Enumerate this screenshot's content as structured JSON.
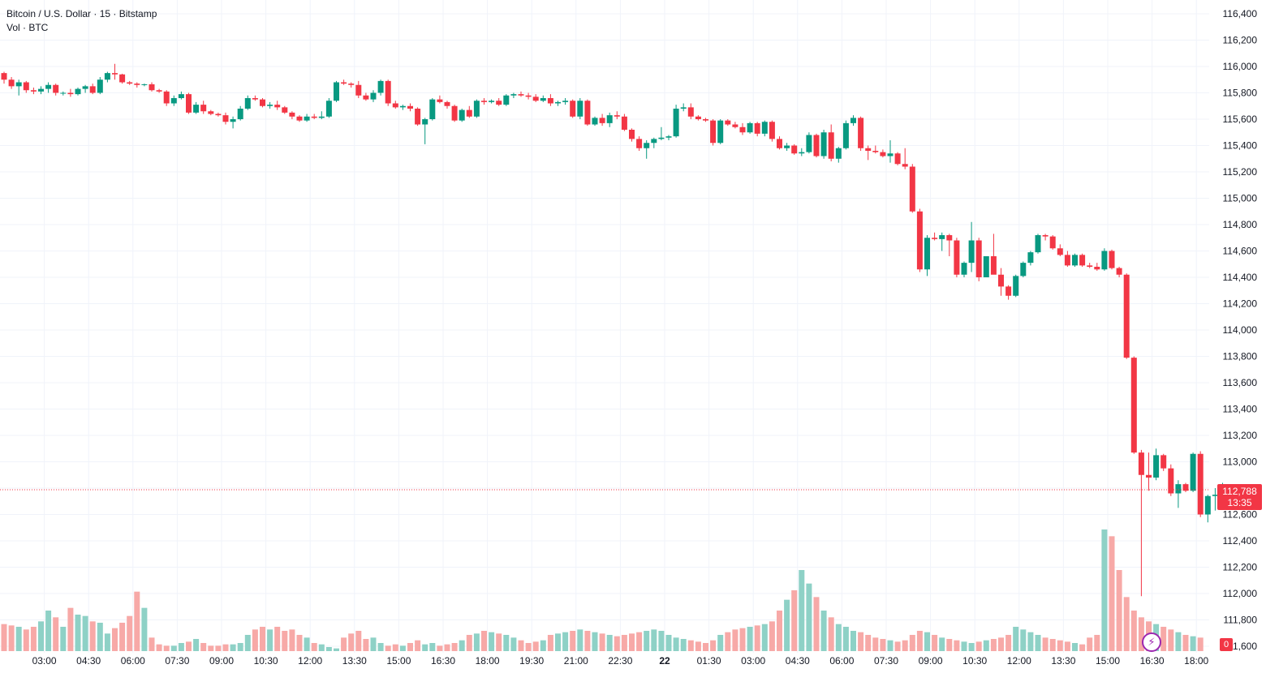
{
  "legend": {
    "symbol_line": "Bitcoin / U.S. Dollar · 15 · Bitstamp",
    "volume_line": "Vol · BTC"
  },
  "last_price": {
    "value": "112,788",
    "countdown": "13:35"
  },
  "volume_badge": "0",
  "colors": {
    "up": "#089981",
    "down": "#f23645",
    "vol_up": "#8ed1c6",
    "vol_down": "#f7a9a7",
    "grid": "#f0f3fa"
  },
  "icons": {
    "assistant": "lightning-bolt-icon"
  },
  "chart_data": {
    "type": "candlestick",
    "title": "Bitcoin / U.S. Dollar · 15 · Bitstamp",
    "y_range": [
      111600,
      116500
    ],
    "y_ticks": [
      116400,
      116200,
      116000,
      115800,
      115600,
      115400,
      115200,
      115000,
      114800,
      114600,
      114400,
      114200,
      114000,
      113800,
      113600,
      113400,
      113200,
      113000,
      112800,
      112600,
      112400,
      112200,
      112000,
      111800,
      111600
    ],
    "x_ticks": [
      {
        "label": "03:00",
        "bold": false
      },
      {
        "label": "04:30",
        "bold": false
      },
      {
        "label": "06:00",
        "bold": false
      },
      {
        "label": "07:30",
        "bold": false
      },
      {
        "label": "09:00",
        "bold": false
      },
      {
        "label": "10:30",
        "bold": false
      },
      {
        "label": "12:00",
        "bold": false
      },
      {
        "label": "13:30",
        "bold": false
      },
      {
        "label": "15:00",
        "bold": false
      },
      {
        "label": "16:30",
        "bold": false
      },
      {
        "label": "18:00",
        "bold": false
      },
      {
        "label": "19:30",
        "bold": false
      },
      {
        "label": "21:00",
        "bold": false
      },
      {
        "label": "22:30",
        "bold": false
      },
      {
        "label": "22",
        "bold": true
      },
      {
        "label": "01:30",
        "bold": false
      },
      {
        "label": "03:00",
        "bold": false
      },
      {
        "label": "04:30",
        "bold": false
      },
      {
        "label": "06:00",
        "bold": false
      },
      {
        "label": "07:30",
        "bold": false
      },
      {
        "label": "09:00",
        "bold": false
      },
      {
        "label": "10:30",
        "bold": false
      },
      {
        "label": "12:00",
        "bold": false
      },
      {
        "label": "13:30",
        "bold": false
      },
      {
        "label": "15:00",
        "bold": false
      },
      {
        "label": "16:30",
        "bold": false
      },
      {
        "label": "18:00",
        "bold": false
      }
    ],
    "candles_per_tick": 6,
    "first_tick_index": 6,
    "last_price": 112788,
    "candles": [
      [
        115950,
        115960,
        115870,
        115900
      ],
      [
        115900,
        115920,
        115830,
        115850
      ],
      [
        115850,
        115900,
        115780,
        115880
      ],
      [
        115880,
        115890,
        115800,
        115820
      ],
      [
        115820,
        115840,
        115790,
        115810
      ],
      [
        115810,
        115850,
        115790,
        115830
      ],
      [
        115830,
        115880,
        115800,
        115860
      ],
      [
        115860,
        115870,
        115780,
        115800
      ],
      [
        115800,
        115810,
        115780,
        115800
      ],
      [
        115800,
        115830,
        115770,
        115790
      ],
      [
        115790,
        115840,
        115780,
        115830
      ],
      [
        115830,
        115860,
        115800,
        115850
      ],
      [
        115850,
        115870,
        115790,
        115800
      ],
      [
        115800,
        115920,
        115790,
        115900
      ],
      [
        115900,
        115960,
        115880,
        115950
      ],
      [
        115950,
        116020,
        115900,
        115940
      ],
      [
        115940,
        115945,
        115870,
        115880
      ],
      [
        115880,
        115890,
        115860,
        115870
      ],
      [
        115870,
        115880,
        115840,
        115860
      ],
      [
        115860,
        115870,
        115850,
        115865
      ],
      [
        115865,
        115880,
        115810,
        115820
      ],
      [
        115820,
        115830,
        115800,
        115810
      ],
      [
        115810,
        115820,
        115700,
        115720
      ],
      [
        115720,
        115780,
        115700,
        115760
      ],
      [
        115760,
        115810,
        115750,
        115790
      ],
      [
        115790,
        115800,
        115640,
        115650
      ],
      [
        115650,
        115730,
        115640,
        115710
      ],
      [
        115710,
        115740,
        115640,
        115660
      ],
      [
        115660,
        115670,
        115630,
        115640
      ],
      [
        115640,
        115650,
        115620,
        115630
      ],
      [
        115630,
        115650,
        115560,
        115580
      ],
      [
        115580,
        115620,
        115530,
        115600
      ],
      [
        115600,
        115700,
        115590,
        115680
      ],
      [
        115680,
        115780,
        115670,
        115760
      ],
      [
        115760,
        115780,
        115740,
        115750
      ],
      [
        115750,
        115760,
        115690,
        115700
      ],
      [
        115700,
        115730,
        115680,
        115710
      ],
      [
        115710,
        115740,
        115670,
        115690
      ],
      [
        115690,
        115700,
        115640,
        115650
      ],
      [
        115650,
        115660,
        115600,
        115620
      ],
      [
        115620,
        115630,
        115580,
        115590
      ],
      [
        115590,
        115640,
        115580,
        115620
      ],
      [
        115620,
        115640,
        115600,
        115610
      ],
      [
        115610,
        115660,
        115600,
        115620
      ],
      [
        115620,
        115760,
        115610,
        115740
      ],
      [
        115740,
        115890,
        115730,
        115880
      ],
      [
        115880,
        115900,
        115860,
        115870
      ],
      [
        115870,
        115880,
        115840,
        115860
      ],
      [
        115860,
        115890,
        115760,
        115780
      ],
      [
        115780,
        115800,
        115740,
        115750
      ],
      [
        115750,
        115820,
        115730,
        115800
      ],
      [
        115800,
        115900,
        115780,
        115890
      ],
      [
        115890,
        115900,
        115700,
        115720
      ],
      [
        115720,
        115740,
        115680,
        115690
      ],
      [
        115690,
        115710,
        115670,
        115700
      ],
      [
        115700,
        115720,
        115660,
        115680
      ],
      [
        115680,
        115690,
        115550,
        115560
      ],
      [
        115560,
        115610,
        115410,
        115600
      ],
      [
        115600,
        115760,
        115590,
        115750
      ],
      [
        115750,
        115780,
        115720,
        115730
      ],
      [
        115730,
        115740,
        115680,
        115700
      ],
      [
        115700,
        115710,
        115580,
        115590
      ],
      [
        115590,
        115680,
        115580,
        115670
      ],
      [
        115670,
        115700,
        115610,
        115620
      ],
      [
        115620,
        115750,
        115610,
        115740
      ],
      [
        115740,
        115760,
        115710,
        115730
      ],
      [
        115730,
        115750,
        115720,
        115740
      ],
      [
        115740,
        115760,
        115700,
        115710
      ],
      [
        115710,
        115790,
        115700,
        115780
      ],
      [
        115780,
        115800,
        115760,
        115790
      ],
      [
        115790,
        115810,
        115770,
        115780
      ],
      [
        115780,
        115800,
        115750,
        115770
      ],
      [
        115770,
        115790,
        115730,
        115740
      ],
      [
        115740,
        115780,
        115730,
        115760
      ],
      [
        115760,
        115790,
        115700,
        115720
      ],
      [
        115720,
        115740,
        115700,
        115730
      ],
      [
        115730,
        115760,
        115710,
        115740
      ],
      [
        115740,
        115750,
        115610,
        115620
      ],
      [
        115620,
        115760,
        115600,
        115740
      ],
      [
        115740,
        115750,
        115550,
        115560
      ],
      [
        115560,
        115620,
        115550,
        115610
      ],
      [
        115610,
        115640,
        115550,
        115570
      ],
      [
        115570,
        115650,
        115540,
        115630
      ],
      [
        115630,
        115660,
        115600,
        115620
      ],
      [
        115620,
        115640,
        115510,
        115520
      ],
      [
        115520,
        115530,
        115430,
        115450
      ],
      [
        115450,
        115470,
        115360,
        115380
      ],
      [
        115380,
        115440,
        115300,
        115420
      ],
      [
        115420,
        115460,
        115380,
        115450
      ],
      [
        115450,
        115540,
        115440,
        115460
      ],
      [
        115460,
        115480,
        115440,
        115470
      ],
      [
        115470,
        115710,
        115460,
        115680
      ],
      [
        115680,
        115720,
        115660,
        115690
      ],
      [
        115690,
        115720,
        115600,
        115620
      ],
      [
        115620,
        115630,
        115590,
        115600
      ],
      [
        115600,
        115610,
        115580,
        115590
      ],
      [
        115590,
        115600,
        115400,
        115420
      ],
      [
        115420,
        115600,
        115410,
        115590
      ],
      [
        115590,
        115600,
        115550,
        115560
      ],
      [
        115560,
        115580,
        115530,
        115540
      ],
      [
        115540,
        115570,
        115480,
        115500
      ],
      [
        115500,
        115580,
        115490,
        115570
      ],
      [
        115570,
        115580,
        115470,
        115490
      ],
      [
        115490,
        115590,
        115470,
        115580
      ],
      [
        115580,
        115590,
        115430,
        115450
      ],
      [
        115450,
        115470,
        115370,
        115380
      ],
      [
        115380,
        115420,
        115360,
        115400
      ],
      [
        115400,
        115410,
        115330,
        115340
      ],
      [
        115340,
        115380,
        115320,
        115350
      ],
      [
        115350,
        115500,
        115340,
        115480
      ],
      [
        115480,
        115490,
        115310,
        115320
      ],
      [
        115320,
        115520,
        115300,
        115500
      ],
      [
        115500,
        115560,
        115280,
        115300
      ],
      [
        115300,
        115390,
        115270,
        115380
      ],
      [
        115380,
        115590,
        115370,
        115570
      ],
      [
        115570,
        115630,
        115550,
        115610
      ],
      [
        115610,
        115620,
        115360,
        115380
      ],
      [
        115380,
        115400,
        115290,
        115360
      ],
      [
        115360,
        115400,
        115340,
        115350
      ],
      [
        115350,
        115370,
        115310,
        115320
      ],
      [
        115320,
        115440,
        115270,
        115340
      ],
      [
        115340,
        115350,
        115250,
        115260
      ],
      [
        115260,
        115380,
        115220,
        115240
      ],
      [
        115240,
        115260,
        114890,
        114900
      ],
      [
        114900,
        114920,
        114440,
        114460
      ],
      [
        114460,
        114720,
        114410,
        114700
      ],
      [
        114700,
        114740,
        114680,
        114690
      ],
      [
        114690,
        114740,
        114600,
        114720
      ],
      [
        114720,
        114730,
        114560,
        114680
      ],
      [
        114680,
        114700,
        114400,
        114420
      ],
      [
        114420,
        114520,
        114400,
        114510
      ],
      [
        114510,
        114820,
        114440,
        114680
      ],
      [
        114680,
        114700,
        114370,
        114400
      ],
      [
        114400,
        114560,
        114410,
        114560
      ],
      [
        114560,
        114730,
        114450,
        114420
      ],
      [
        114420,
        114470,
        114260,
        114330
      ],
      [
        114330,
        114340,
        114230,
        114260
      ],
      [
        114260,
        114420,
        114250,
        114410
      ],
      [
        114410,
        114520,
        114400,
        114510
      ],
      [
        114510,
        114600,
        114490,
        114590
      ],
      [
        114590,
        114730,
        114580,
        114720
      ],
      [
        114720,
        114730,
        114680,
        114710
      ],
      [
        114710,
        114720,
        114610,
        114620
      ],
      [
        114620,
        114650,
        114560,
        114570
      ],
      [
        114570,
        114600,
        114480,
        114490
      ],
      [
        114490,
        114580,
        114480,
        114570
      ],
      [
        114570,
        114580,
        114480,
        114490
      ],
      [
        114490,
        114510,
        114470,
        114480
      ],
      [
        114480,
        114510,
        114450,
        114460
      ],
      [
        114460,
        114620,
        114450,
        114600
      ],
      [
        114600,
        114610,
        114460,
        114470
      ],
      [
        114470,
        114480,
        114400,
        114420
      ],
      [
        114420,
        114430,
        113780,
        113790
      ],
      [
        113790,
        113800,
        113060,
        113070
      ],
      [
        113070,
        113090,
        111980,
        112900
      ],
      [
        112900,
        113070,
        112780,
        112880
      ],
      [
        112880,
        113100,
        112860,
        113050
      ],
      [
        113050,
        113060,
        112930,
        112950
      ],
      [
        112950,
        112980,
        112740,
        112760
      ],
      [
        112760,
        112860,
        112650,
        112830
      ],
      [
        112830,
        112840,
        112770,
        112780
      ],
      [
        112780,
        113070,
        112770,
        113060
      ],
      [
        113060,
        113080,
        112580,
        112600
      ],
      [
        112600,
        112750,
        112540,
        112740
      ],
      [
        112740,
        112800,
        112630,
        112750
      ],
      [
        112750,
        112840,
        112690,
        112780
      ],
      [
        112780,
        112800,
        112770,
        112788
      ]
    ],
    "volume": [
      20,
      19,
      18,
      16,
      18,
      22,
      30,
      25,
      18,
      32,
      27,
      26,
      22,
      21,
      13,
      17,
      21,
      26,
      44,
      32,
      10,
      5,
      4,
      4,
      6,
      7,
      9,
      6,
      4,
      4,
      5,
      5,
      6,
      12,
      16,
      18,
      16,
      18,
      15,
      16,
      12,
      10,
      6,
      5,
      3,
      2,
      10,
      13,
      15,
      9,
      10,
      6,
      4,
      5,
      4,
      6,
      8,
      5,
      6,
      4,
      5,
      6,
      8,
      12,
      13,
      15,
      14,
      13,
      12,
      10,
      8,
      6,
      7,
      8,
      12,
      13,
      14,
      15,
      16,
      15,
      14,
      13,
      12,
      11,
      12,
      13,
      14,
      15,
      16,
      15,
      12,
      10,
      9,
      8,
      7,
      6,
      8,
      12,
      14,
      16,
      17,
      18,
      19,
      20,
      22,
      30,
      38,
      45,
      60,
      50,
      40,
      30,
      25,
      20,
      18,
      15,
      14,
      12,
      10,
      9,
      8,
      7,
      8,
      12,
      15,
      14,
      12,
      10,
      9,
      8,
      7,
      6,
      7,
      8,
      9,
      10,
      12,
      18,
      16,
      14,
      12,
      10,
      9,
      8,
      7,
      6,
      5,
      10,
      12,
      90,
      85,
      60,
      40,
      30,
      25,
      22,
      20,
      18,
      16,
      14,
      12,
      11,
      10
    ],
    "volume_max": 120
  }
}
